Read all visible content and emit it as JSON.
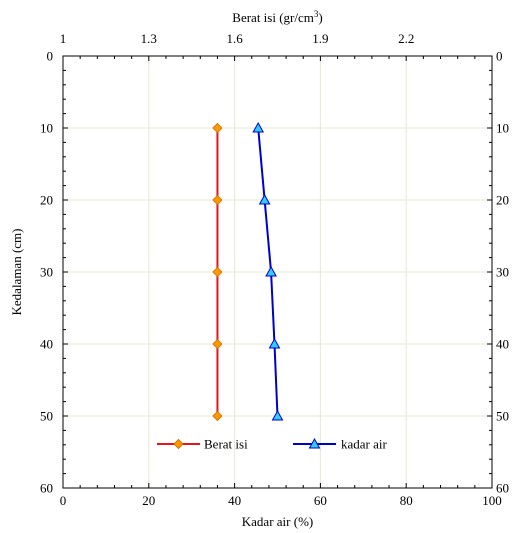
{
  "chart_data": {
    "type": "line",
    "title": "",
    "top_axis": {
      "label_main": "Berat isi (gr/cm",
      "label_sup": "3",
      "label_tail": ")",
      "range": [
        1,
        2.5
      ],
      "ticks": [
        1,
        1.3,
        1.6,
        1.9,
        2.2
      ],
      "tick_labels": [
        "1",
        "1.3",
        "1.6",
        "1.9",
        "2.2"
      ]
    },
    "bottom_axis": {
      "label": "Kadar air (%)",
      "range": [
        0,
        100
      ],
      "ticks": [
        0,
        20,
        40,
        60,
        80,
        100
      ],
      "tick_labels": [
        "0",
        "20",
        "40",
        "60",
        "80",
        "100"
      ]
    },
    "y_axis": {
      "label": "Kedalaman (cm)",
      "range": [
        0,
        60
      ],
      "inverted": true,
      "ticks": [
        0,
        10,
        20,
        30,
        40,
        50,
        60
      ],
      "tick_labels": [
        "0",
        "10",
        "20",
        "30",
        "40",
        "50",
        "60"
      ]
    },
    "grid": true,
    "legend_position": "bottom-center",
    "series": [
      {
        "name": "Berat isi",
        "axis": "top",
        "color": "#e8141c",
        "marker": "diamond",
        "marker_color": "#ff9900",
        "x": [
          1.54,
          1.54,
          1.54,
          1.54,
          1.54
        ],
        "y": [
          10,
          20,
          30,
          40,
          50
        ]
      },
      {
        "name": "kadar air",
        "axis": "bottom",
        "color": "#0000cc",
        "marker": "triangle",
        "marker_color": "#33ccff",
        "x": [
          45.5,
          47,
          48.5,
          49.3,
          50
        ],
        "y": [
          10,
          20,
          30,
          40,
          50
        ]
      }
    ]
  }
}
